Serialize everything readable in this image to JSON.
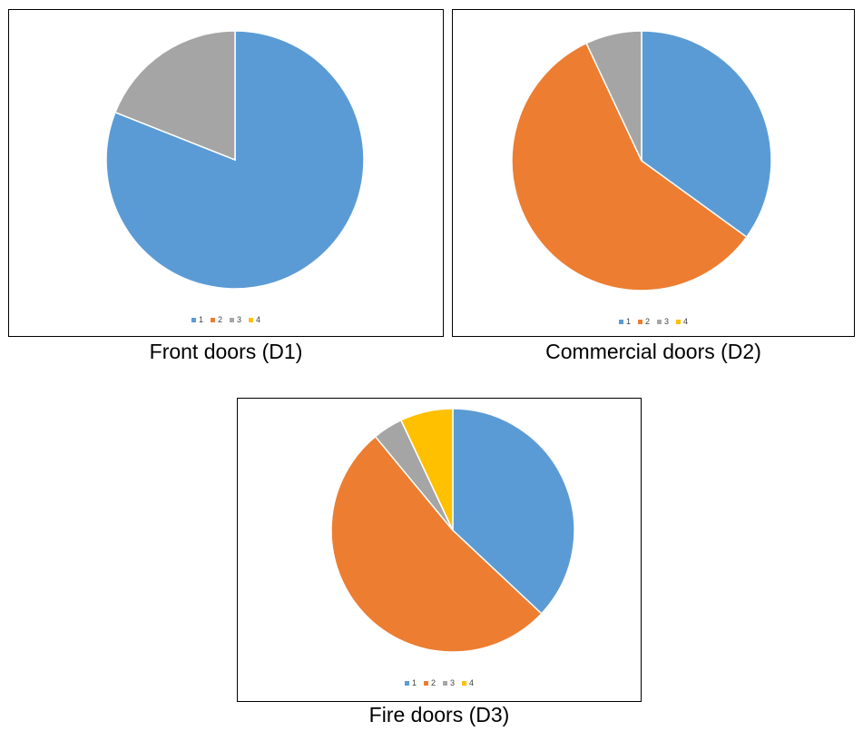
{
  "colors": {
    "1": "#5B9BD5",
    "2": "#ED7D31",
    "3": "#A5A5A5",
    "4": "#FFC000"
  },
  "chart_data": [
    {
      "type": "pie",
      "title": "Front doors (D1)",
      "categories": [
        "1",
        "2",
        "3",
        "4"
      ],
      "values": [
        81,
        0,
        19,
        0
      ],
      "legend": "bottom"
    },
    {
      "type": "pie",
      "title": "Commercial doors (D2)",
      "categories": [
        "1",
        "2",
        "3",
        "4"
      ],
      "values": [
        35,
        58,
        7,
        0
      ],
      "legend": "bottom"
    },
    {
      "type": "pie",
      "title": "Fire doors (D3)",
      "categories": [
        "1",
        "2",
        "3",
        "4"
      ],
      "values": [
        37,
        52,
        4,
        7
      ],
      "legend": "bottom"
    }
  ]
}
